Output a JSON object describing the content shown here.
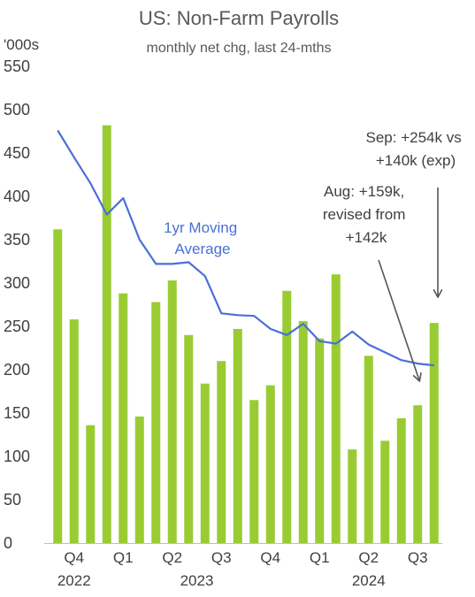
{
  "chart_data": {
    "type": "bar",
    "title": "US: Non-Farm Payrolls",
    "subtitle": "monthly net chg, last 24-mths",
    "unit_label": "'000s",
    "ylim": [
      0,
      550
    ],
    "yticks": [
      0,
      50,
      100,
      150,
      200,
      250,
      300,
      350,
      400,
      450,
      500,
      550
    ],
    "grid": false,
    "legend": "none",
    "x_ticks": [
      {
        "label": "Q4",
        "index": 1
      },
      {
        "label": "Q1",
        "index": 4
      },
      {
        "label": "Q2",
        "index": 7
      },
      {
        "label": "Q3",
        "index": 10
      },
      {
        "label": "Q4",
        "index": 13
      },
      {
        "label": "Q1",
        "index": 16
      },
      {
        "label": "Q2",
        "index": 19
      },
      {
        "label": "Q3",
        "index": 22
      }
    ],
    "year_labels": [
      {
        "label": "2022",
        "index": 1
      },
      {
        "label": "2023",
        "index": 8.5
      },
      {
        "label": "2024",
        "index": 19
      }
    ],
    "series": [
      {
        "type": "bar",
        "color": "#99cc33",
        "values": [
          362,
          258,
          136,
          482,
          288,
          146,
          278,
          303,
          240,
          184,
          210,
          247,
          165,
          182,
          291,
          256,
          236,
          310,
          108,
          216,
          118,
          144,
          159,
          254
        ]
      },
      {
        "name": "1yr Moving Average",
        "type": "line",
        "color": "#4a6fd8",
        "values": [
          476,
          445,
          415,
          379,
          398,
          350,
          322,
          322,
          324,
          308,
          265,
          263,
          262,
          247,
          240,
          253,
          233,
          230,
          244,
          229,
          220,
          211,
          207,
          205
        ]
      }
    ],
    "annotations": [
      {
        "lines": [
          "1yr Moving",
          "Average"
        ],
        "kind": "series-label"
      },
      {
        "lines": [
          "Aug: +159k,",
          "revised from",
          "+142k"
        ],
        "kind": "arrow",
        "target_index": 22
      },
      {
        "lines": [
          "Sep: +254k vs",
          "+140k (exp)"
        ],
        "kind": "arrow",
        "target_index": 23
      }
    ]
  }
}
